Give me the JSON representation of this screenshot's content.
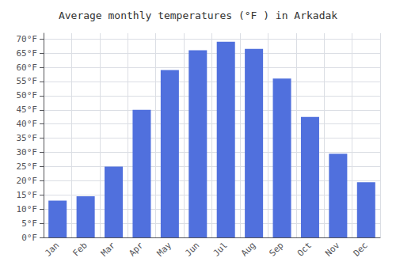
{
  "chart_data": {
    "type": "bar",
    "title": "Average monthly temperatures (°F ) in Arkadak",
    "categories": [
      "Jan",
      "Feb",
      "Mar",
      "Apr",
      "May",
      "Jun",
      "Jul",
      "Aug",
      "Sep",
      "Oct",
      "Nov",
      "Dec"
    ],
    "values": [
      13,
      14.5,
      25,
      45,
      59,
      66,
      69,
      66.5,
      56,
      42.5,
      29.5,
      19.5
    ],
    "ylim": [
      0,
      72
    ],
    "yticks": [
      {
        "value": 0,
        "label": "0°F"
      },
      {
        "value": 5,
        "label": "5°F"
      },
      {
        "value": 10,
        "label": "10°F"
      },
      {
        "value": 15,
        "label": "15°F"
      },
      {
        "value": 20,
        "label": "20°F"
      },
      {
        "value": 25,
        "label": "25°F"
      },
      {
        "value": 30,
        "label": "30°F"
      },
      {
        "value": 35,
        "label": "35°F"
      },
      {
        "value": 40,
        "label": "40°F"
      },
      {
        "value": 45,
        "label": "45°F"
      },
      {
        "value": 50,
        "label": "50°F"
      },
      {
        "value": 55,
        "label": "55°F"
      },
      {
        "value": 60,
        "label": "60°F"
      },
      {
        "value": 65,
        "label": "65°F"
      },
      {
        "value": 70,
        "label": "70°F"
      }
    ],
    "grid": true
  }
}
